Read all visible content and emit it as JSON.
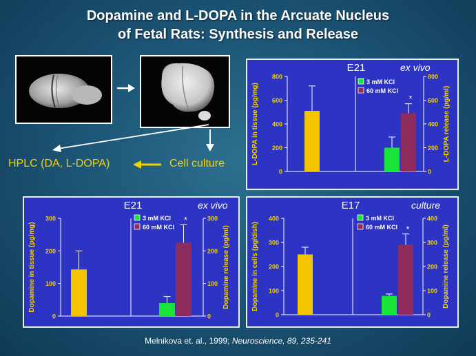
{
  "slide": {
    "title_line1": "Dopamine and L-DOPA in the Arcuate Nucleus",
    "title_line2": "of Fetal Rats: Synthesis and Release",
    "label_hplc": "HPLC (DA, L-DOPA)",
    "label_culture": "Cell culture",
    "citation_prefix": "Melnikova et. al., 1999; ",
    "citation_journal": "Neuroscience, 89, 235-241"
  },
  "colors": {
    "panel_bg": "#2d33c2",
    "tissue_bar": "#f5c400",
    "kcl3_bar": "#19e43a",
    "kcl60_bar": "#8f2c5e",
    "axis_text": "#f2d300",
    "heading_text": "#ffffff"
  },
  "chart_data": [
    {
      "type": "bar",
      "title": "E21",
      "condition": "ex vivo",
      "ylabel_left": "L-DOPA in tissue (pg/mg)",
      "ylabel_right": "L-DOPA release (pg/ml)",
      "ylim_left": [
        0,
        800
      ],
      "yticks_left": [
        0,
        200,
        400,
        600,
        800
      ],
      "ylim_right": [
        0,
        800
      ],
      "yticks_right": [
        0,
        200,
        400,
        600,
        800
      ],
      "legend": [
        "3 mM KCl",
        "60 mM KCl"
      ],
      "tissue": {
        "value": 510,
        "err": 720
      },
      "release": [
        {
          "name": "3 mM KCl",
          "value": 200,
          "err": 290
        },
        {
          "name": "60 mM KCl",
          "value": 490,
          "err": 570,
          "star": "*"
        }
      ]
    },
    {
      "type": "bar",
      "title": "E21",
      "condition": "ex vivo",
      "ylabel_left": "Dopamine in tissue (pg/mg)",
      "ylabel_right": "Dopamine release (pg/ml)",
      "ylim_left": [
        0,
        300
      ],
      "yticks_left": [
        0,
        100,
        200,
        300
      ],
      "ylim_right": [
        0,
        300
      ],
      "yticks_right": [
        0,
        100,
        200,
        300
      ],
      "legend": [
        "3 mM KCl",
        "60 mM KCl"
      ],
      "tissue": {
        "value": 143,
        "err": 200
      },
      "release": [
        {
          "name": "3 mM KCl",
          "value": 40,
          "err": 60
        },
        {
          "name": "60 mM KCl",
          "value": 225,
          "err": 280,
          "star": "*"
        }
      ]
    },
    {
      "type": "bar",
      "title": "E17",
      "condition": "culture",
      "ylabel_left": "Dopamine in cells (pg/dish)",
      "ylabel_right": "Dopamine release (pg/ml)",
      "ylim_left": [
        0,
        400
      ],
      "yticks_left": [
        0,
        100,
        200,
        300,
        400
      ],
      "ylim_right": [
        0,
        400
      ],
      "yticks_right": [
        0,
        100,
        200,
        300,
        400
      ],
      "legend": [
        "3 mM KCl",
        "60 mM KCl"
      ],
      "tissue": {
        "value": 250,
        "err": 280
      },
      "release": [
        {
          "name": "3 mM KCl",
          "value": 78,
          "err": 86
        },
        {
          "name": "60 mM KCl",
          "value": 290,
          "err": 335,
          "star": "*"
        }
      ]
    }
  ]
}
